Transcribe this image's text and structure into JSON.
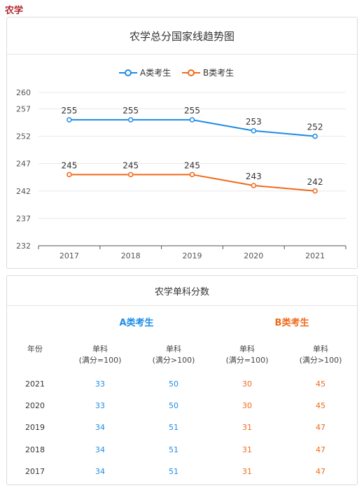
{
  "page_label": "农学",
  "chart_data": {
    "type": "line",
    "title": "农学总分国家线趋势图",
    "categories": [
      "2017",
      "2018",
      "2019",
      "2020",
      "2021"
    ],
    "series": [
      {
        "name": "A类考生",
        "color": "#1e8ce6",
        "values": [
          255,
          255,
          255,
          253,
          252
        ]
      },
      {
        "name": "B类考生",
        "color": "#f06a1b",
        "values": [
          245,
          245,
          245,
          243,
          242
        ]
      }
    ],
    "yticks": [
      232,
      237,
      242,
      247,
      252,
      257,
      260
    ],
    "ylim": [
      232,
      260
    ],
    "legend_position": "top-center",
    "grid": true
  },
  "table": {
    "title": "农学单科分数",
    "group_a": "A类考生",
    "group_b": "B类考生",
    "headers": [
      {
        "line1": "年份",
        "line2": ""
      },
      {
        "line1": "单科",
        "line2": "(满分=100)"
      },
      {
        "line1": "单科",
        "line2": "(满分>100)"
      },
      {
        "line1": "单科",
        "line2": "(满分=100)"
      },
      {
        "line1": "单科",
        "line2": "(满分>100)"
      }
    ],
    "rows": [
      [
        "2021",
        "33",
        "50",
        "30",
        "45"
      ],
      [
        "2020",
        "33",
        "50",
        "30",
        "45"
      ],
      [
        "2019",
        "34",
        "51",
        "31",
        "47"
      ],
      [
        "2018",
        "34",
        "51",
        "31",
        "47"
      ],
      [
        "2017",
        "34",
        "51",
        "31",
        "47"
      ]
    ]
  }
}
